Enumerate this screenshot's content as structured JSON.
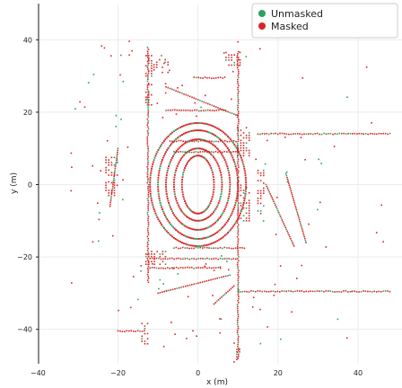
{
  "chart_data": {
    "type": "scatter",
    "title": "",
    "xlabel": "x (m)",
    "ylabel": "y (m)",
    "xlim": [
      -49.5,
      51
    ],
    "ylim": [
      -49.5,
      50
    ],
    "xticks": [
      -40,
      -20,
      0,
      20,
      40
    ],
    "yticks": [
      -40,
      -20,
      0,
      20,
      40
    ],
    "xtick_labels": [
      "−40",
      "−20",
      "0",
      "20",
      "40"
    ],
    "ytick_labels": [
      "−40",
      "−20",
      "0",
      "20",
      "40"
    ],
    "grid": true,
    "legend_position": "top-right",
    "series": [
      {
        "name": "Unmasked",
        "color": "#2ca25f"
      },
      {
        "name": "Masked",
        "color": "#d62728"
      }
    ],
    "structures": [
      {
        "kind": "ring",
        "cx": 0,
        "cy": 0,
        "rx": 4,
        "ry": 8
      },
      {
        "kind": "ring",
        "cx": 0,
        "cy": 0,
        "rx": 6,
        "ry": 10
      },
      {
        "kind": "ring",
        "cx": 0,
        "cy": 0,
        "rx": 8,
        "ry": 12.5
      },
      {
        "kind": "ring",
        "cx": 0,
        "cy": 0,
        "rx": 10,
        "ry": 15
      },
      {
        "kind": "ring",
        "cx": 0,
        "cy": 0,
        "rx": 12,
        "ry": 17
      },
      {
        "kind": "vline",
        "x": -12.5,
        "y0": -27,
        "y1": 38
      },
      {
        "kind": "vline",
        "x": 10,
        "y0": -48,
        "y1": 37
      },
      {
        "kind": "hline",
        "y": -29.5,
        "x0": 10,
        "x1": 48
      },
      {
        "kind": "hline",
        "y": 14,
        "x0": 15,
        "x1": 48
      },
      {
        "kind": "hline",
        "y": 29.5,
        "x0": -1,
        "x1": 7
      },
      {
        "kind": "hline",
        "y": 20.5,
        "x0": -8,
        "x1": 7
      },
      {
        "kind": "hline",
        "y": 12,
        "x0": -7,
        "x1": 10
      },
      {
        "kind": "hline",
        "y": 9,
        "x0": -6,
        "x1": 10
      },
      {
        "kind": "hline",
        "y": -17.5,
        "x0": -6,
        "x1": 12
      },
      {
        "kind": "hline",
        "y": -20.5,
        "x0": -12,
        "x1": 10
      },
      {
        "kind": "hline",
        "y": -23,
        "x0": -12,
        "x1": 6
      },
      {
        "kind": "hline",
        "y": -40.5,
        "x0": -20,
        "x1": -13
      },
      {
        "kind": "diag",
        "x0": -8,
        "y0": 27,
        "x1": 10,
        "y1": 19
      },
      {
        "kind": "diag",
        "x0": -10,
        "y0": -30,
        "x1": 8,
        "y1": -25
      },
      {
        "kind": "diag",
        "x0": 17,
        "y0": 0,
        "x1": 24,
        "y1": -17
      },
      {
        "kind": "diag",
        "x0": 22,
        "y0": 3,
        "x1": 27,
        "y1": -16
      },
      {
        "kind": "diag",
        "x0": -20,
        "y0": 10,
        "x1": -22,
        "y1": -6
      },
      {
        "kind": "diag",
        "x0": 9,
        "y0": -28,
        "x1": 4,
        "y1": -33
      },
      {
        "kind": "block",
        "x0": -13,
        "y0": 30,
        "x1": -11,
        "y1": 36
      },
      {
        "kind": "block",
        "x0": -11,
        "y0": 31,
        "x1": -7,
        "y1": 35
      },
      {
        "kind": "block",
        "x0": 7,
        "y0": 33,
        "x1": 11,
        "y1": 37
      },
      {
        "kind": "block",
        "x0": 10,
        "y0": 8,
        "x1": 13,
        "y1": 16
      },
      {
        "kind": "block",
        "x0": 10,
        "y0": -10,
        "x1": 13,
        "y1": 0
      },
      {
        "kind": "block",
        "x0": -13,
        "y0": -22,
        "x1": -8,
        "y1": -18
      },
      {
        "kind": "block",
        "x0": -13,
        "y0": 22,
        "x1": -11,
        "y1": 28
      },
      {
        "kind": "block",
        "x0": 15,
        "y0": -8,
        "x1": 17,
        "y1": 4
      },
      {
        "kind": "block",
        "x0": -23,
        "y0": -3,
        "x1": -20,
        "y1": 8
      },
      {
        "kind": "block",
        "x0": 9,
        "y0": -49,
        "x1": 11,
        "y1": -45
      },
      {
        "kind": "block",
        "x0": -14,
        "y0": -44,
        "x1": -12,
        "y1": -38
      }
    ]
  }
}
